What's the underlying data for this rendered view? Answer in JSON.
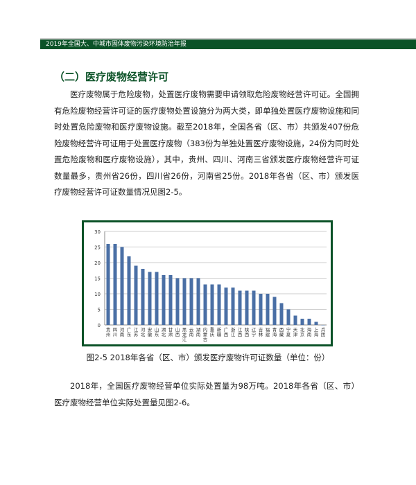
{
  "header": {
    "title": "2019年全国大、中城市固体废物污染环境防治年报"
  },
  "section_title": "（二）医疗废物经营许可",
  "paragraph1": "医疗废物属于危险废物，处置医疗废物需要申请领取危险废物经营许可证。全国拥有危险废物经营许可证的医疗废物处置设施分为两大类，即单独处置医疗废物设施和同时处置危险废物和医疗废物设施。截至2018年，全国各省（区、市）共颁发407份危险废物经营许可证用于处置医疗废物（383份为单独处置医疗废物设施，24份为同时处置危险废物和医疗废物设施），其中，贵州、四川、河南三省颁发医疗废物经营许可证数量最多，贵州省26份，四川省26份，河南省25份。2018年各省（区、市）颁发医疗废物经营许可证数量情况见图2-5。",
  "figure_caption": "图2-5 2018年各省（区、市）颁发医疗废物许可证数量（单位：份）",
  "paragraph2": "2018年，全国医疗废物经营单位实际处置量为98万吨。2018年各省（区、市）医疗废物经营单位实际处置量见图2-6。",
  "colors": {
    "accent": "#0b5227",
    "bar": "#4a6fa5"
  },
  "chart_data": {
    "type": "bar",
    "categories": [
      "贵州",
      "四川",
      "河南",
      "广东",
      "江苏",
      "河北",
      "安徽",
      "山东",
      "湖北",
      "甘肃",
      "山西",
      "黑龙江",
      "云南",
      "湖南",
      "内蒙古",
      "重庆",
      "新疆",
      "广西",
      "浙江",
      "江西",
      "陕西",
      "辽宁",
      "吉林",
      "福建",
      "青海",
      "西藏",
      "宁夏",
      "天津",
      "北京",
      "海南",
      "上海",
      "兵团"
    ],
    "values": [
      26,
      26,
      25,
      22,
      19,
      18,
      17,
      17,
      16,
      16,
      15,
      15,
      15,
      15,
      13,
      13,
      13,
      12,
      12,
      11,
      11,
      11,
      10,
      10,
      9,
      7,
      5,
      3,
      2,
      2,
      1,
      0
    ],
    "ylim": [
      0,
      30
    ],
    "yticks": [
      0,
      5,
      10,
      15,
      20,
      25,
      30
    ],
    "grid": true
  }
}
